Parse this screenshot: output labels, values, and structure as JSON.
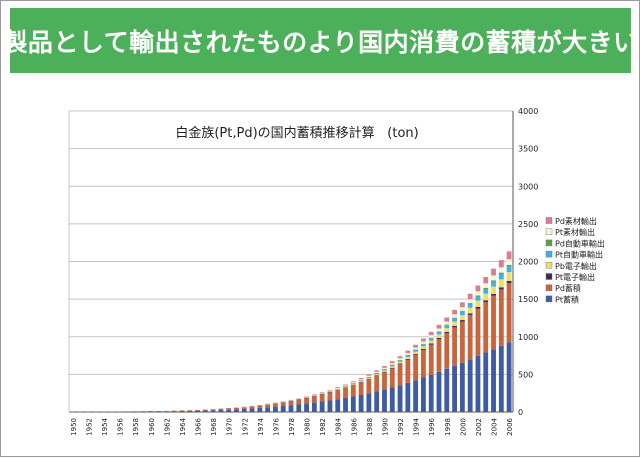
{
  "slide": {
    "heading": "製品として輸出されたものより国内消費の蓄積が大きい"
  },
  "colors": {
    "banner": "#4cb05a",
    "banner_text": "#ffffff"
  },
  "chart_data": {
    "type": "bar",
    "stacked": true,
    "title": "白金族(Pt,Pd)の国内蓄積推移計算",
    "unit": "(ton)",
    "xlabel": "",
    "ylabel": "",
    "ylim": [
      0,
      4000
    ],
    "yticks": [
      0,
      500,
      1000,
      1500,
      2000,
      2500,
      3000,
      3500,
      4000
    ],
    "y_axis_side": "right",
    "grid": true,
    "legend_position": "right",
    "categories": [
      1950,
      1951,
      1952,
      1953,
      1954,
      1955,
      1956,
      1957,
      1958,
      1959,
      1960,
      1961,
      1962,
      1963,
      1964,
      1965,
      1966,
      1967,
      1968,
      1969,
      1970,
      1971,
      1972,
      1973,
      1974,
      1975,
      1976,
      1977,
      1978,
      1979,
      1980,
      1981,
      1982,
      1983,
      1984,
      1985,
      1986,
      1987,
      1988,
      1989,
      1990,
      1991,
      1992,
      1993,
      1994,
      1995,
      1996,
      1997,
      1998,
      1999,
      2000,
      2001,
      2002,
      2003,
      2004,
      2005,
      2006
    ],
    "xticks": [
      "1950",
      "1952",
      "1954",
      "1956",
      "1958",
      "1960",
      "1962",
      "1964",
      "1966",
      "1968",
      "1970",
      "1972",
      "1974",
      "1976",
      "1978",
      "1980",
      "1982",
      "1984",
      "1986",
      "1988",
      "1990",
      "1992",
      "1994",
      "1996",
      "1998",
      "2000",
      "2002",
      "2004",
      "2006"
    ],
    "series": [
      {
        "name": "Pt蓄積",
        "color": "#3e5ba4",
        "values": [
          2,
          3,
          3,
          3,
          4,
          4,
          5,
          6,
          6,
          7,
          8,
          9,
          10,
          12,
          14,
          16,
          18,
          21,
          24,
          27,
          31,
          36,
          41,
          47,
          54,
          62,
          70,
          80,
          90,
          100,
          112,
          125,
          139,
          154,
          170,
          187,
          206,
          226,
          248,
          272,
          298,
          326,
          356,
          388,
          422,
          458,
          496,
          535,
          575,
          615,
          655,
          700,
          745,
          790,
          835,
          880,
          925
        ]
      },
      {
        "name": "Pd蓄積",
        "color": "#c8653f",
        "values": [
          1,
          1,
          1,
          1,
          1,
          2,
          2,
          2,
          3,
          3,
          4,
          4,
          5,
          6,
          7,
          8,
          9,
          11,
          13,
          15,
          18,
          21,
          24,
          28,
          33,
          38,
          43,
          50,
          57,
          65,
          74,
          84,
          95,
          107,
          120,
          135,
          151,
          168,
          187,
          207,
          229,
          253,
          278,
          305,
          335,
          367,
          400,
          435,
          472,
          510,
          548,
          590,
          630,
          670,
          710,
          750,
          790
        ]
      },
      {
        "name": "Pt電子輸出",
        "color": "#3b2a5a",
        "values": [
          0,
          0,
          0,
          0,
          0,
          0,
          0,
          0,
          0,
          0,
          0,
          0,
          0,
          0,
          0,
          0,
          0,
          0,
          0,
          1,
          1,
          1,
          1,
          1,
          1,
          2,
          2,
          2,
          2,
          3,
          3,
          3,
          4,
          4,
          5,
          5,
          6,
          6,
          7,
          8,
          8,
          9,
          10,
          11,
          12,
          13,
          14,
          15,
          16,
          18,
          19,
          21,
          22,
          24,
          25,
          27,
          28
        ]
      },
      {
        "name": "Pb電子輸出",
        "color": "#ede062",
        "values": [
          0,
          0,
          0,
          0,
          0,
          0,
          0,
          0,
          0,
          0,
          0,
          0,
          0,
          0,
          0,
          0,
          0,
          0,
          0,
          0,
          0,
          1,
          1,
          1,
          1,
          1,
          2,
          2,
          2,
          3,
          3,
          4,
          5,
          6,
          7,
          8,
          9,
          11,
          13,
          15,
          17,
          20,
          23,
          27,
          31,
          35,
          40,
          46,
          52,
          59,
          66,
          74,
          82,
          90,
          98,
          106,
          115
        ]
      },
      {
        "name": "Pt自動車輸出",
        "color": "#3bb3e6",
        "values": [
          0,
          0,
          0,
          0,
          0,
          0,
          0,
          0,
          0,
          0,
          0,
          0,
          0,
          0,
          0,
          0,
          0,
          0,
          0,
          0,
          0,
          0,
          0,
          0,
          0,
          1,
          1,
          1,
          2,
          2,
          3,
          3,
          4,
          5,
          6,
          7,
          8,
          10,
          11,
          13,
          15,
          17,
          19,
          22,
          25,
          28,
          31,
          34,
          38,
          42,
          46,
          51,
          56,
          61,
          66,
          71,
          77
        ]
      },
      {
        "name": "Pd自動車輸出",
        "color": "#5aa14c",
        "values": [
          0,
          0,
          0,
          0,
          0,
          0,
          0,
          0,
          0,
          0,
          0,
          0,
          0,
          0,
          0,
          0,
          0,
          0,
          0,
          0,
          0,
          0,
          0,
          0,
          0,
          0,
          0,
          0,
          0,
          0,
          1,
          1,
          1,
          1,
          1,
          2,
          2,
          2,
          2,
          3,
          3,
          4,
          4,
          5,
          5,
          6,
          7,
          8,
          9,
          10,
          11,
          12,
          13,
          15,
          16,
          18,
          20
        ]
      },
      {
        "name": "Pt素材輸出",
        "color": "#f7f4d8",
        "values": [
          0,
          0,
          0,
          0,
          0,
          0,
          0,
          0,
          0,
          0,
          0,
          0,
          0,
          0,
          0,
          0,
          0,
          1,
          1,
          1,
          1,
          1,
          1,
          2,
          2,
          2,
          3,
          3,
          4,
          4,
          5,
          6,
          7,
          8,
          9,
          10,
          11,
          13,
          14,
          16,
          18,
          20,
          22,
          25,
          27,
          30,
          33,
          36,
          40,
          44,
          48,
          52,
          56,
          60,
          65,
          70,
          75
        ]
      },
      {
        "name": "Pd素材輸出",
        "color": "#d97f8c",
        "values": [
          0,
          0,
          0,
          0,
          0,
          0,
          0,
          0,
          0,
          0,
          0,
          0,
          0,
          0,
          0,
          0,
          0,
          1,
          1,
          1,
          1,
          1,
          1,
          2,
          2,
          3,
          3,
          4,
          4,
          5,
          6,
          7,
          8,
          9,
          11,
          12,
          14,
          16,
          18,
          20,
          23,
          26,
          29,
          33,
          36,
          40,
          44,
          49,
          54,
          60,
          65,
          71,
          77,
          84,
          90,
          97,
          105
        ]
      }
    ]
  }
}
